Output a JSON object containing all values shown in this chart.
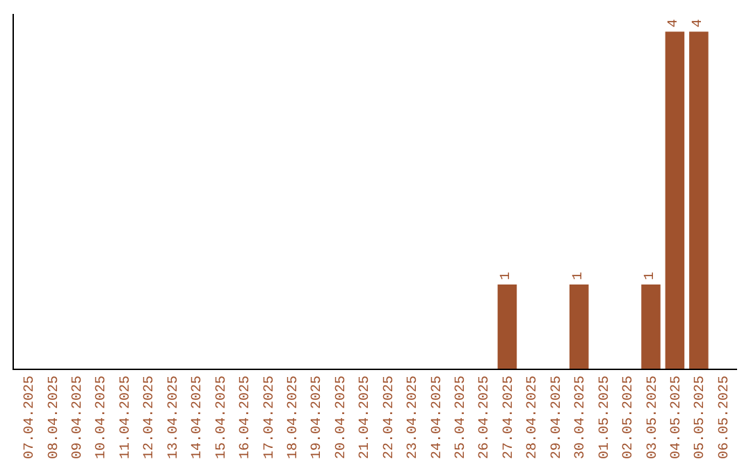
{
  "chart_data": {
    "type": "bar",
    "categories": [
      "07.04.2025",
      "08.04.2025",
      "09.04.2025",
      "10.04.2025",
      "11.04.2025",
      "12.04.2025",
      "13.04.2025",
      "14.04.2025",
      "15.04.2025",
      "16.04.2025",
      "17.04.2025",
      "18.04.2025",
      "19.04.2025",
      "20.04.2025",
      "21.04.2025",
      "22.04.2025",
      "23.04.2025",
      "24.04.2025",
      "25.04.2025",
      "26.04.2025",
      "27.04.2025",
      "28.04.2025",
      "29.04.2025",
      "30.04.2025",
      "01.05.2025",
      "02.05.2025",
      "03.05.2025",
      "04.05.2025",
      "05.05.2025",
      "06.05.2025"
    ],
    "values": [
      null,
      null,
      null,
      null,
      null,
      null,
      null,
      null,
      null,
      null,
      null,
      null,
      null,
      null,
      null,
      null,
      null,
      null,
      null,
      null,
      1,
      null,
      null,
      1,
      null,
      null,
      1,
      4,
      4,
      null
    ],
    "data_labels": true,
    "color": "#a0522d",
    "tick_labels": "x"
  }
}
